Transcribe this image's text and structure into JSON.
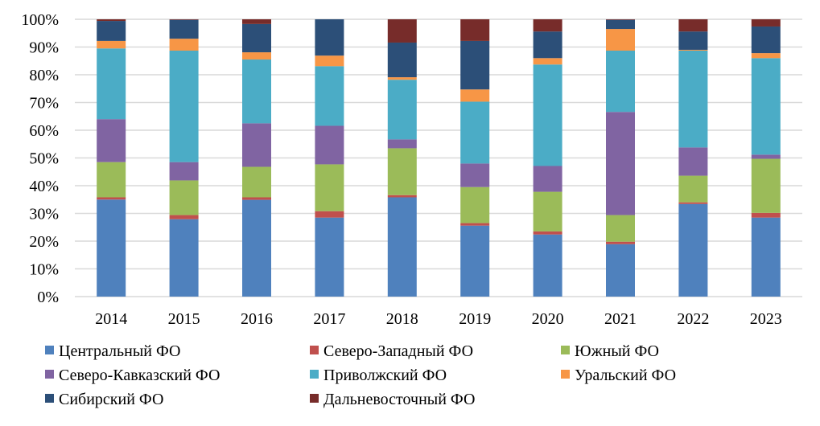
{
  "chart_data": {
    "type": "bar",
    "stacked": true,
    "percent": true,
    "title": "",
    "xlabel": "",
    "ylabel": "",
    "ylim": [
      0,
      100
    ],
    "yticks": [
      "0%",
      "10%",
      "20%",
      "30%",
      "40%",
      "50%",
      "60%",
      "70%",
      "80%",
      "90%",
      "100%"
    ],
    "grid": true,
    "legend_position": "bottom",
    "categories": [
      "2014",
      "2015",
      "2016",
      "2017",
      "2018",
      "2019",
      "2020",
      "2021",
      "2022",
      "2023"
    ],
    "series": [
      {
        "name": "Центральный ФО",
        "color": "#4F81BD",
        "values": [
          35.0,
          27.9,
          34.9,
          28.5,
          35.8,
          25.6,
          22.4,
          18.9,
          33.4,
          28.5
        ]
      },
      {
        "name": "Северо-Западный ФО",
        "color": "#C0504D",
        "values": [
          0.8,
          1.5,
          0.9,
          2.3,
          0.8,
          0.9,
          1.1,
          0.9,
          0.6,
          1.7
        ]
      },
      {
        "name": "Южный ФО",
        "color": "#9BBB59",
        "values": [
          12.7,
          12.5,
          11.0,
          16.9,
          16.9,
          13.0,
          14.3,
          9.6,
          9.6,
          19.5
        ]
      },
      {
        "name": "Северо-Кавказский ФО",
        "color": "#8064A2",
        "values": [
          15.5,
          6.6,
          15.7,
          13.9,
          3.2,
          8.5,
          9.3,
          37.2,
          10.2,
          1.5
        ]
      },
      {
        "name": "Приволжский ФО",
        "color": "#4BACC6",
        "values": [
          25.5,
          40.2,
          23.0,
          21.5,
          21.5,
          22.3,
          36.6,
          22.1,
          34.9,
          34.8
        ]
      },
      {
        "name": "Уральский ФО",
        "color": "#F79646",
        "values": [
          2.7,
          4.3,
          2.6,
          3.8,
          0.9,
          4.4,
          2.3,
          7.8,
          0.3,
          1.8
        ]
      },
      {
        "name": "Сибирский ФО",
        "color": "#2C4F78",
        "values": [
          7.2,
          6.8,
          10.2,
          13.1,
          12.5,
          17.5,
          9.6,
          3.3,
          6.6,
          9.6
        ]
      },
      {
        "name": "Дальневосточный ФО",
        "color": "#772C2A",
        "values": [
          0.6,
          0.2,
          1.7,
          0.0,
          8.4,
          7.8,
          4.4,
          0.2,
          4.4,
          2.6
        ]
      }
    ]
  }
}
